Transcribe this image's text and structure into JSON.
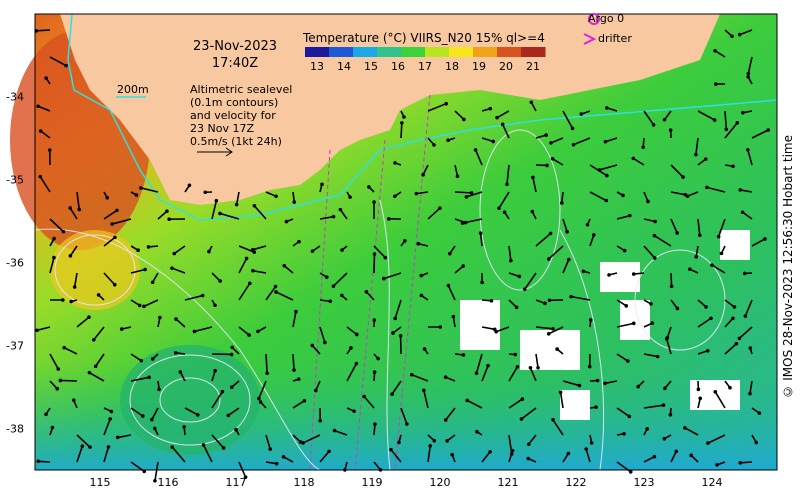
{
  "map": {
    "date": "23-Nov-2023",
    "time": "17:40Z",
    "colorbar_title": "Temperature (°C) VIIRS_N20 15% ql>=4",
    "colorbar_ticks": [
      "13",
      "14",
      "15",
      "16",
      "17",
      "18",
      "19",
      "20",
      "21"
    ],
    "colorbar_colors": [
      "#1a1aa0",
      "#1e5ad8",
      "#19a8e8",
      "#2dc38a",
      "#3bd23c",
      "#b8e61e",
      "#f6e61a",
      "#f0a21a",
      "#d8541e",
      "#a8281e"
    ],
    "contour_label": "200m",
    "altimetry_note": "Altimetric sealevel\n(0.1m contours)\nand velocity for\n23 Nov 17Z\n0.5m/s (1kt 24h)",
    "legend": {
      "argo": "Argo 0",
      "drifter": "drifter",
      "argo_color": "#e020e0",
      "drifter_color": "#e020e0"
    },
    "credit": "© IMOS 28-Nov-2023 12:56:30 Hobart time",
    "lon_ticks": [
      "115",
      "116",
      "117",
      "118",
      "119",
      "120",
      "121",
      "122",
      "123",
      "124"
    ],
    "lat_ticks": [
      "-34",
      "-35",
      "-36",
      "-37",
      "-38"
    ],
    "land_color": "#f8c8a0"
  }
}
